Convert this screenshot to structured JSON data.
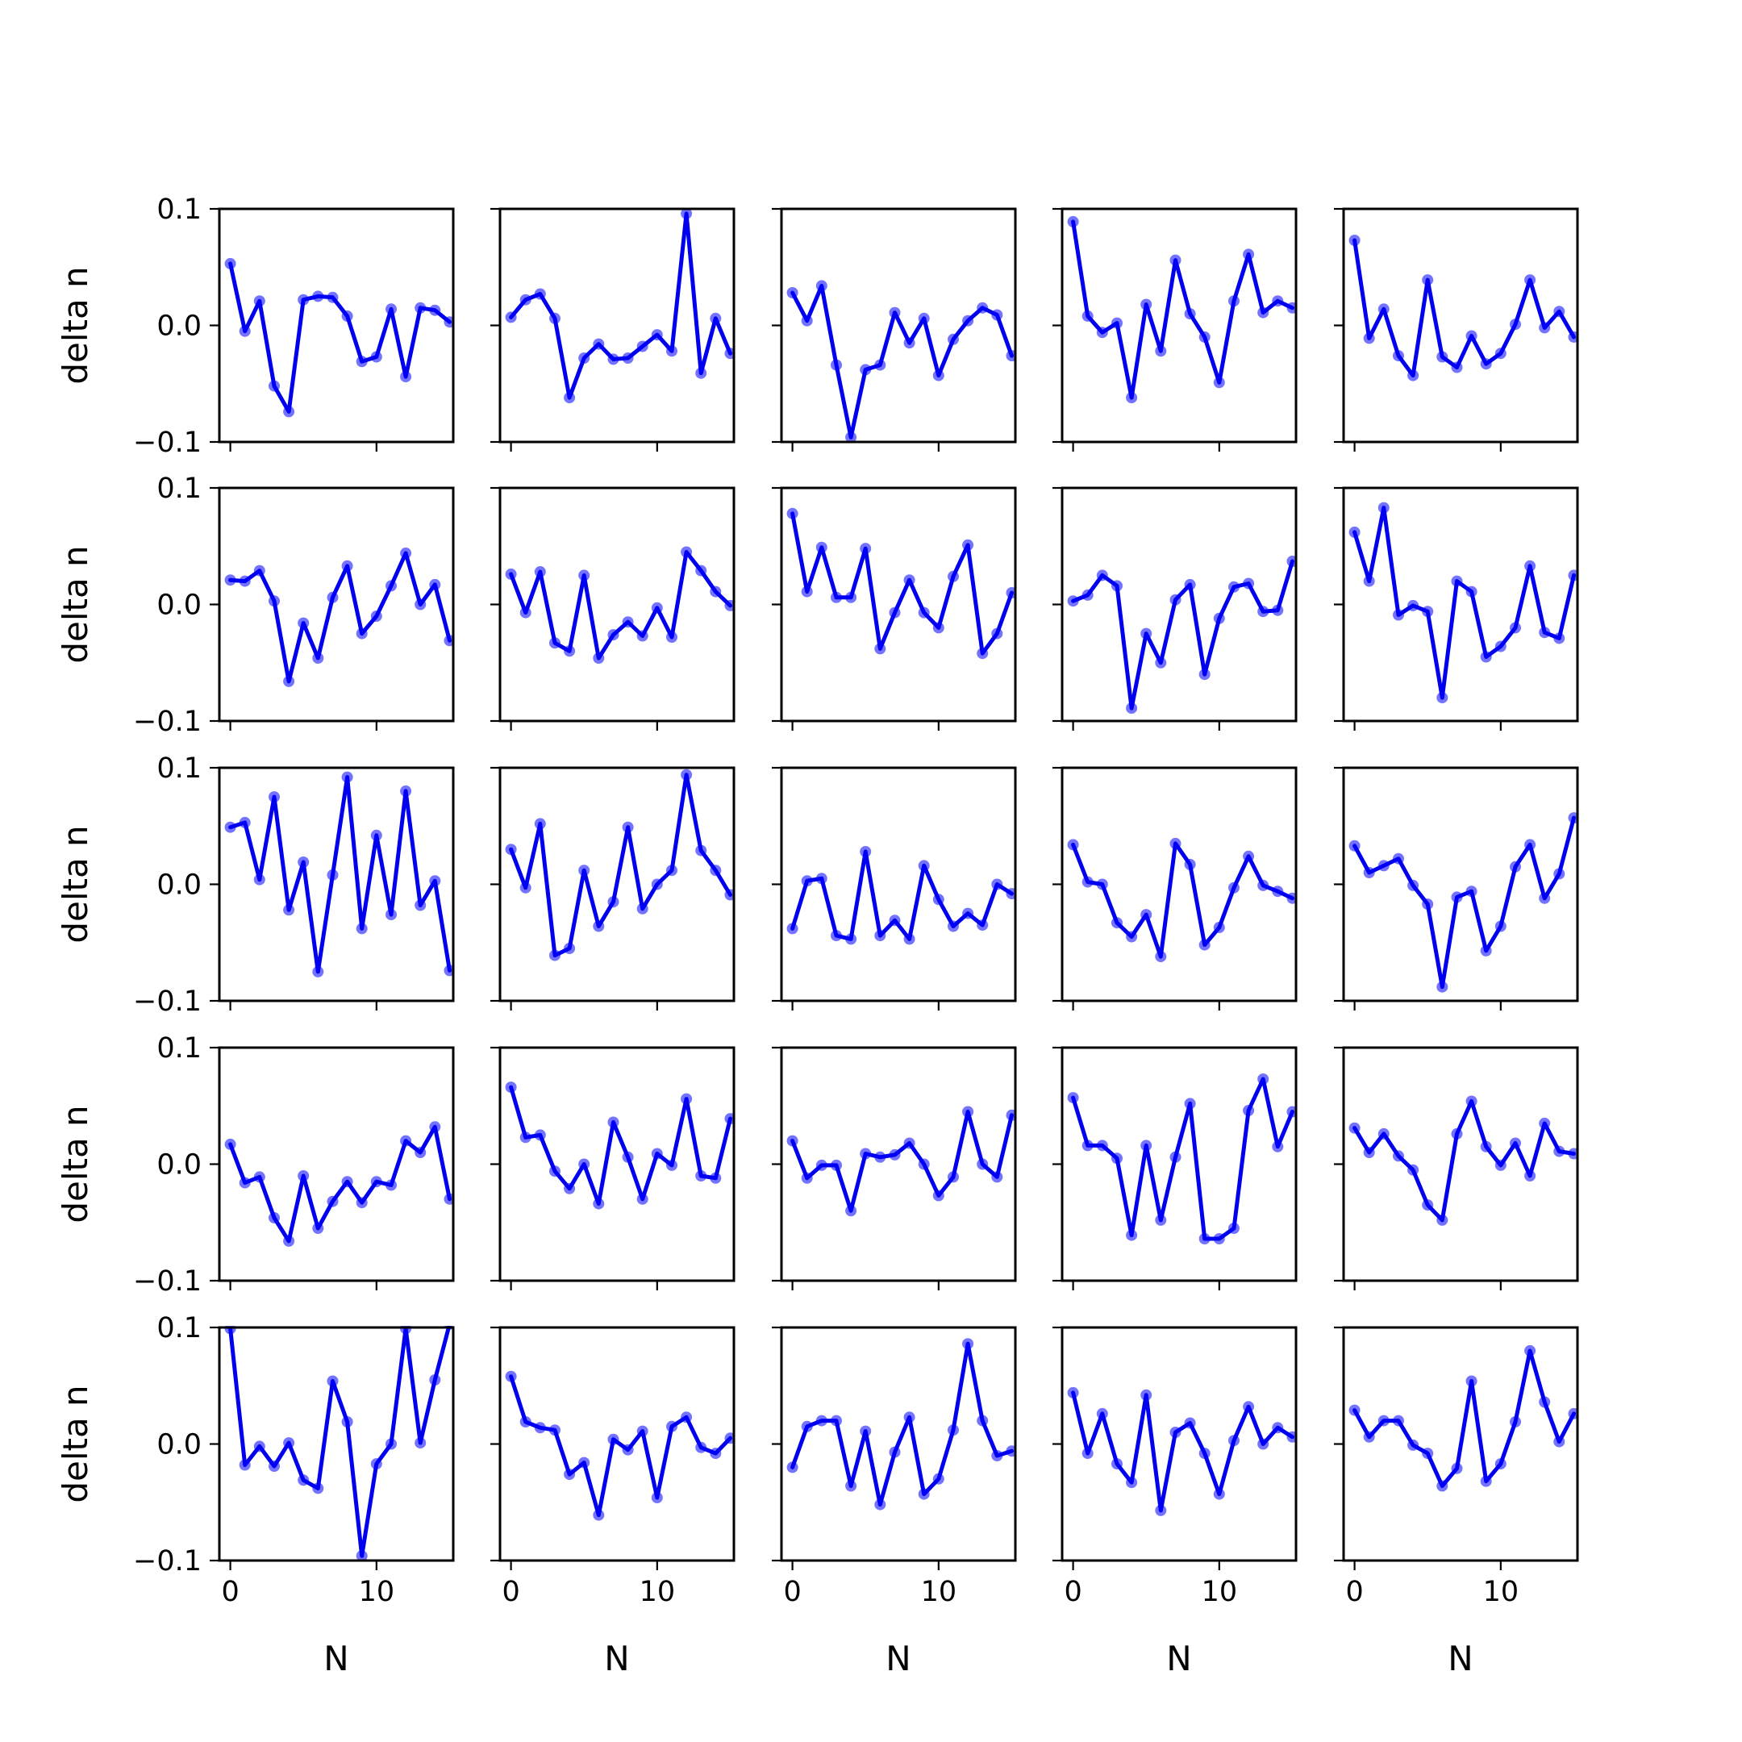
{
  "chart_data": {
    "type": "line",
    "layout": {
      "rows": 5,
      "cols": 5
    },
    "xlabel": "N",
    "ylabel": "delta n",
    "xlim": [
      -0.75,
      15.25
    ],
    "ylim": [
      -0.1,
      0.1
    ],
    "x_ticks": [
      0,
      10
    ],
    "x_tick_labels": [
      "0",
      "10"
    ],
    "y_ticks": [
      0.1,
      0.0,
      -0.1
    ],
    "y_tick_labels": [
      "0.1",
      "0.0",
      "−0.1"
    ],
    "x": [
      0,
      1,
      2,
      3,
      4,
      5,
      6,
      7,
      8,
      9,
      10,
      11,
      12,
      13,
      14,
      15
    ],
    "colors": {
      "line": "#0000ee",
      "point": "#0000ff",
      "axes": "#000000"
    },
    "grid": false,
    "panels": [
      [
        0.053,
        -0.005,
        0.021,
        -0.052,
        -0.074,
        0.022,
        0.025,
        0.024,
        0.008,
        -0.031,
        -0.027,
        0.014,
        -0.044,
        0.015,
        0.013,
        0.003
      ],
      [
        0.007,
        0.022,
        0.027,
        0.006,
        -0.062,
        -0.028,
        -0.016,
        -0.029,
        -0.028,
        -0.018,
        -0.008,
        -0.022,
        0.096,
        -0.041,
        0.006,
        -0.024
      ],
      [
        0.028,
        0.004,
        0.034,
        -0.034,
        -0.096,
        -0.038,
        -0.034,
        0.011,
        -0.015,
        0.006,
        -0.043,
        -0.012,
        0.004,
        0.015,
        0.009,
        -0.026
      ],
      [
        0.089,
        0.008,
        -0.006,
        0.002,
        -0.062,
        0.018,
        -0.022,
        0.056,
        0.01,
        -0.01,
        -0.049,
        0.021,
        0.061,
        0.011,
        0.021,
        0.015
      ],
      [
        0.073,
        -0.011,
        0.014,
        -0.026,
        -0.043,
        0.039,
        -0.027,
        -0.036,
        -0.009,
        -0.033,
        -0.024,
        0.001,
        0.039,
        -0.002,
        0.012,
        -0.01
      ],
      [
        0.021,
        0.02,
        0.029,
        0.003,
        -0.066,
        -0.016,
        -0.046,
        0.006,
        0.033,
        -0.025,
        -0.01,
        0.016,
        0.044,
        0.0,
        0.017,
        -0.031
      ],
      [
        0.026,
        -0.007,
        0.028,
        -0.033,
        -0.04,
        0.025,
        -0.046,
        -0.026,
        -0.015,
        -0.027,
        -0.003,
        -0.028,
        0.045,
        0.029,
        0.011,
        -0.001
      ],
      [
        0.078,
        0.011,
        0.049,
        0.006,
        0.006,
        0.048,
        -0.038,
        -0.007,
        0.021,
        -0.007,
        -0.02,
        0.024,
        0.051,
        -0.042,
        -0.025,
        0.01
      ],
      [
        0.003,
        0.008,
        0.025,
        0.016,
        -0.089,
        -0.025,
        -0.05,
        0.004,
        0.017,
        -0.06,
        -0.012,
        0.015,
        0.018,
        -0.006,
        -0.005,
        0.037
      ],
      [
        0.062,
        0.02,
        0.083,
        -0.009,
        -0.001,
        -0.006,
        -0.08,
        0.02,
        0.011,
        -0.045,
        -0.036,
        -0.02,
        0.033,
        -0.024,
        -0.029,
        0.025
      ]
    ],
    "panels_rows_3_to_5": [
      [
        0.049,
        0.053,
        0.004,
        0.075,
        -0.022,
        0.019,
        -0.075,
        0.008,
        0.092,
        -0.038,
        0.042,
        -0.026,
        0.08,
        -0.018,
        0.003,
        -0.074
      ],
      [
        0.03,
        -0.003,
        0.052,
        -0.061,
        -0.055,
        0.012,
        -0.036,
        -0.015,
        0.049,
        -0.021,
        0.0,
        0.012,
        0.094,
        0.029,
        0.012,
        -0.009
      ],
      [
        -0.038,
        0.003,
        0.005,
        -0.044,
        -0.047,
        0.028,
        -0.044,
        -0.031,
        -0.047,
        0.016,
        -0.013,
        -0.036,
        -0.025,
        -0.035,
        0.0,
        -0.008
      ],
      [
        0.034,
        0.002,
        0.0,
        -0.033,
        -0.045,
        -0.026,
        -0.062,
        0.035,
        0.017,
        -0.052,
        -0.037,
        -0.003,
        0.024,
        -0.001,
        -0.006,
        -0.012
      ],
      [
        0.033,
        0.01,
        0.016,
        0.022,
        -0.001,
        -0.017,
        -0.088,
        -0.011,
        -0.006,
        -0.057,
        -0.036,
        0.015,
        0.034,
        -0.012,
        0.009,
        0.057
      ],
      [
        0.017,
        -0.016,
        -0.011,
        -0.046,
        -0.066,
        -0.01,
        -0.055,
        -0.032,
        -0.015,
        -0.033,
        -0.015,
        -0.018,
        0.02,
        0.01,
        0.032,
        -0.03
      ],
      [
        0.066,
        0.023,
        0.025,
        -0.006,
        -0.021,
        0.0,
        -0.034,
        0.036,
        0.006,
        -0.03,
        0.009,
        -0.001,
        0.056,
        -0.01,
        -0.012,
        0.039
      ],
      [
        0.02,
        -0.012,
        -0.001,
        -0.001,
        -0.04,
        0.009,
        0.006,
        0.008,
        0.018,
        0.0,
        -0.027,
        -0.011,
        0.045,
        0.0,
        -0.011,
        0.042
      ],
      [
        0.057,
        0.016,
        0.016,
        0.005,
        -0.061,
        0.016,
        -0.048,
        0.006,
        0.052,
        -0.064,
        -0.064,
        -0.055,
        0.046,
        0.073,
        0.015,
        0.045
      ],
      [
        0.031,
        0.01,
        0.026,
        0.007,
        -0.005,
        -0.035,
        -0.048,
        0.026,
        0.054,
        0.015,
        -0.001,
        0.018,
        -0.01,
        0.035,
        0.011,
        0.009
      ],
      [
        0.099,
        -0.018,
        -0.002,
        -0.019,
        0.001,
        -0.031,
        -0.038,
        0.054,
        0.019,
        -0.096,
        -0.017,
        0.0,
        0.099,
        0.001,
        0.055,
        0.103
      ],
      [
        0.058,
        0.019,
        0.014,
        0.012,
        -0.026,
        -0.016,
        -0.061,
        0.004,
        -0.005,
        0.011,
        -0.046,
        0.015,
        0.023,
        -0.003,
        -0.008,
        0.005
      ],
      [
        -0.02,
        0.015,
        0.02,
        0.02,
        -0.036,
        0.011,
        -0.052,
        -0.007,
        0.023,
        -0.043,
        -0.03,
        0.012,
        0.086,
        0.02,
        -0.01,
        -0.006
      ],
      [
        0.044,
        -0.008,
        0.026,
        -0.017,
        -0.033,
        0.042,
        -0.057,
        0.01,
        0.018,
        -0.008,
        -0.043,
        0.003,
        0.032,
        0.0,
        0.014,
        0.006
      ],
      [
        0.029,
        0.006,
        0.02,
        0.02,
        -0.001,
        -0.008,
        -0.036,
        -0.021,
        0.054,
        -0.032,
        -0.017,
        0.019,
        0.08,
        0.036,
        0.002,
        0.026
      ]
    ]
  }
}
